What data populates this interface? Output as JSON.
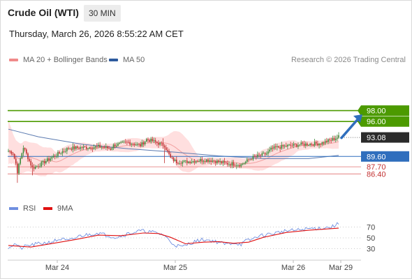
{
  "header": {
    "title": "Crude Oil (WTI)",
    "timeframe": "30 MIN"
  },
  "date_line": "Thursday, March 26, 2026 8:55:22 AM CET",
  "legend": {
    "ma20": "MA 20 + Bollinger Bands",
    "ma50": "MA 50",
    "credit": "Research © 2026 Trading Central"
  },
  "rsi_legend": {
    "rsi": "RSI",
    "ma9": "9MA"
  },
  "colors": {
    "up": "#3a8a3a",
    "down": "#c03030",
    "band": "#ffd9d9",
    "ma20": "#f2a0a0",
    "ma50": "#5b7ab0",
    "target": "#4c9a00",
    "support": "#2f6ebd",
    "pivot": "#e07070",
    "arrow": "#2f6ebd",
    "current": "#2b2b2b",
    "rsi": "#6f8fe0",
    "rsi_ma": "#e01010"
  },
  "chart_data": [
    {
      "type": "candlestick",
      "ylim": [
        83.5,
        106
      ],
      "x_ticks": [
        "Mar 24",
        "Mar 25",
        "Mar 26",
        "Mar 29"
      ],
      "levels": [
        {
          "value": 98.0,
          "label": "98.00",
          "kind": "target"
        },
        {
          "value": 96.0,
          "label": "96.00",
          "kind": "target"
        },
        {
          "value": 93.08,
          "label": "93.08",
          "kind": "current"
        },
        {
          "value": 89.6,
          "label": "89.60",
          "kind": "support"
        },
        {
          "value": 87.7,
          "label": "87.70",
          "kind": "pivot"
        },
        {
          "value": 86.4,
          "label": "86.40",
          "kind": "pivot"
        }
      ],
      "anchors": [
        [
          0,
          90.6
        ],
        [
          3,
          90.2
        ],
        [
          5,
          88.3
        ],
        [
          6,
          86.8
        ],
        [
          8,
          89.2
        ],
        [
          10,
          91.3
        ],
        [
          13,
          89.4
        ],
        [
          16,
          87.5
        ],
        [
          19,
          87.8
        ],
        [
          24,
          88.6
        ],
        [
          30,
          89.6
        ],
        [
          40,
          91.1
        ],
        [
          55,
          91.3
        ],
        [
          62,
          91.4
        ],
        [
          68,
          91.0
        ],
        [
          70,
          91.6
        ],
        [
          80,
          92.2
        ],
        [
          85,
          91.8
        ],
        [
          88,
          91.6
        ],
        [
          92,
          92.7
        ],
        [
          95,
          92.5
        ],
        [
          100,
          92.0
        ],
        [
          104,
          91.6
        ],
        [
          108,
          89.3
        ],
        [
          112,
          88.6
        ],
        [
          118,
          88.6
        ],
        [
          125,
          88.8
        ],
        [
          130,
          89.0
        ],
        [
          135,
          88.9
        ],
        [
          145,
          88.3
        ],
        [
          150,
          88.2
        ],
        [
          155,
          88.1
        ],
        [
          158,
          88.6
        ],
        [
          162,
          89.3
        ],
        [
          168,
          89.8
        ],
        [
          172,
          90.1
        ],
        [
          175,
          90.9
        ],
        [
          178,
          91.2
        ],
        [
          185,
          91.5
        ],
        [
          195,
          91.8
        ],
        [
          208,
          92.0
        ],
        [
          215,
          92.6
        ],
        [
          220,
          93.2
        ]
      ],
      "ma50_points": [
        [
          0,
          94.6
        ],
        [
          20,
          93.2
        ],
        [
          50,
          91.8
        ],
        [
          80,
          91.0
        ],
        [
          110,
          90.4
        ],
        [
          140,
          89.7
        ],
        [
          170,
          89.2
        ],
        [
          200,
          89.2
        ],
        [
          220,
          89.8
        ]
      ],
      "arrow": {
        "from": [
          0,
          93.0
        ],
        "to": [
          17,
          97.3
        ]
      }
    },
    {
      "type": "line",
      "ylim": [
        10,
        90
      ],
      "y_ticks": [
        70,
        50,
        30
      ],
      "rsi_points": [
        [
          0,
          33
        ],
        [
          5,
          39
        ],
        [
          8,
          30
        ],
        [
          12,
          35
        ],
        [
          20,
          39
        ],
        [
          28,
          42
        ],
        [
          35,
          48
        ],
        [
          40,
          44
        ],
        [
          47,
          53
        ],
        [
          55,
          57
        ],
        [
          60,
          59
        ],
        [
          65,
          55
        ],
        [
          72,
          51
        ],
        [
          80,
          58
        ],
        [
          88,
          63
        ],
        [
          95,
          61
        ],
        [
          100,
          58
        ],
        [
          104,
          55
        ],
        [
          108,
          42
        ],
        [
          112,
          36
        ],
        [
          116,
          33
        ],
        [
          120,
          39
        ],
        [
          125,
          44
        ],
        [
          130,
          47
        ],
        [
          135,
          45
        ],
        [
          140,
          42
        ],
        [
          145,
          38
        ],
        [
          150,
          41
        ],
        [
          155,
          38
        ],
        [
          158,
          44
        ],
        [
          162,
          47
        ],
        [
          166,
          53
        ],
        [
          172,
          56
        ],
        [
          178,
          59
        ],
        [
          185,
          63
        ],
        [
          192,
          64
        ],
        [
          200,
          67
        ],
        [
          208,
          68
        ],
        [
          215,
          70
        ],
        [
          220,
          76
        ]
      ],
      "ma9_points": [
        [
          0,
          36
        ],
        [
          15,
          33
        ],
        [
          30,
          40
        ],
        [
          45,
          47
        ],
        [
          60,
          55
        ],
        [
          75,
          54
        ],
        [
          90,
          59
        ],
        [
          100,
          58
        ],
        [
          108,
          51
        ],
        [
          118,
          39
        ],
        [
          130,
          42
        ],
        [
          140,
          43
        ],
        [
          150,
          40
        ],
        [
          160,
          42
        ],
        [
          170,
          51
        ],
        [
          185,
          60
        ],
        [
          200,
          64
        ],
        [
          220,
          68
        ]
      ]
    }
  ]
}
